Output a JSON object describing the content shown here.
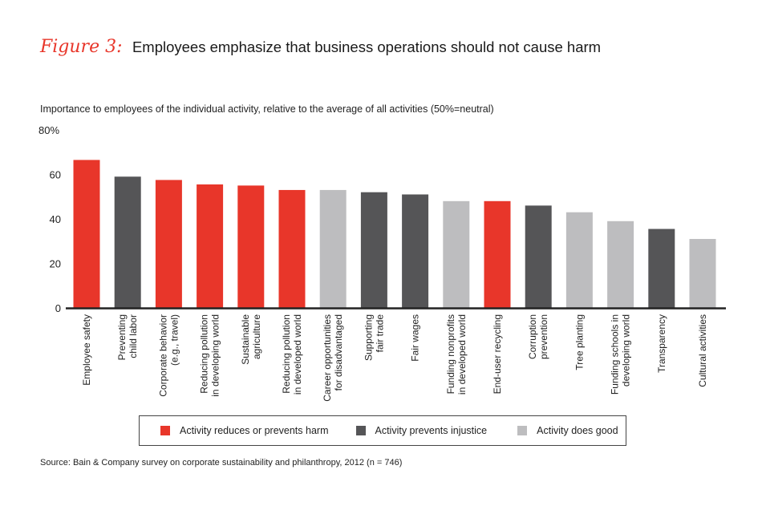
{
  "figure": {
    "label": "Figure 3:",
    "title": "Employees emphasize that business operations should not cause harm",
    "subtitle": "Importance to employees of the individual activity, relative to the average of all activities (50%=neutral)",
    "source": "Source: Bain & Company survey on corporate sustainability and philanthropy, 2012 (n = 746)"
  },
  "colors": {
    "harm": "#e8362a",
    "injustice": "#555557",
    "good": "#bdbdbf",
    "axis": "#222222"
  },
  "legend": [
    {
      "key": "harm",
      "label": "Activity reduces or prevents harm"
    },
    {
      "key": "injustice",
      "label": "Activity prevents injustice"
    },
    {
      "key": "good",
      "label": "Activity does good"
    }
  ],
  "chart_data": {
    "type": "bar",
    "title": "Employees emphasize that business operations should not cause harm",
    "ylabel": "Importance to employees of the individual activity, relative to the average of all activities (50%=neutral)",
    "xlabel": "",
    "ylim": [
      0,
      80
    ],
    "yticks": [
      {
        "value": 0,
        "label": "0"
      },
      {
        "value": 20,
        "label": "20"
      },
      {
        "value": 40,
        "label": "40"
      },
      {
        "value": 60,
        "label": "60"
      },
      {
        "value": 80,
        "label": "80%"
      }
    ],
    "grid": false,
    "legend_position": "bottom",
    "categories": [
      {
        "lines": [
          "Employee safety"
        ],
        "value": 66.5,
        "group": "harm"
      },
      {
        "lines": [
          "Preventing",
          "child labor"
        ],
        "value": 59,
        "group": "injustice"
      },
      {
        "lines": [
          "Corporate behavior",
          "(e.g., travel)"
        ],
        "value": 57.5,
        "group": "harm"
      },
      {
        "lines": [
          "Reducing pollution",
          "in developing world"
        ],
        "value": 55.5,
        "group": "harm"
      },
      {
        "lines": [
          "Sustainable",
          "agriculture"
        ],
        "value": 55,
        "group": "harm"
      },
      {
        "lines": [
          "Reducing pollution",
          "in developed world"
        ],
        "value": 53,
        "group": "harm"
      },
      {
        "lines": [
          "Career opportunities",
          "for disadvantaged"
        ],
        "value": 53,
        "group": "good"
      },
      {
        "lines": [
          "Supporting",
          "fair trade"
        ],
        "value": 52,
        "group": "injustice"
      },
      {
        "lines": [
          "Fair wages"
        ],
        "value": 51,
        "group": "injustice"
      },
      {
        "lines": [
          "Funding nonprofits",
          "in developed world"
        ],
        "value": 48,
        "group": "good"
      },
      {
        "lines": [
          "End-user recycling"
        ],
        "value": 48,
        "group": "harm"
      },
      {
        "lines": [
          "Corruption",
          "prevention"
        ],
        "value": 46,
        "group": "injustice"
      },
      {
        "lines": [
          "Tree planting"
        ],
        "value": 43,
        "group": "good"
      },
      {
        "lines": [
          "Funding schools in",
          "developing world"
        ],
        "value": 39,
        "group": "good"
      },
      {
        "lines": [
          "Transparency"
        ],
        "value": 35.5,
        "group": "injustice"
      },
      {
        "lines": [
          "Cultural activities"
        ],
        "value": 31,
        "group": "good"
      }
    ]
  }
}
